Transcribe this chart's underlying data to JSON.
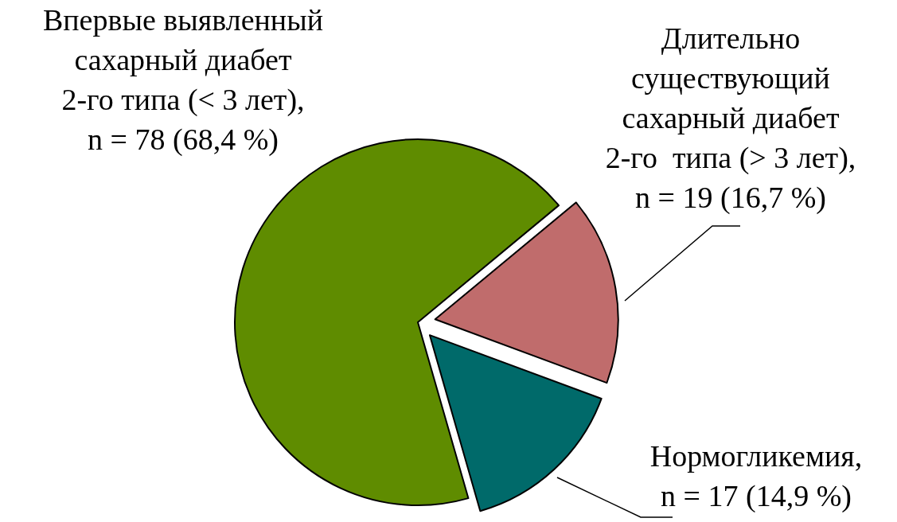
{
  "chart_data": {
    "type": "pie",
    "categories": [
      "Впервые выявленный\nсахарный диабет\n2-го типа (< 3 лет),\nn = 78 (68,4 %)",
      "Длительно\nсуществующий\nсахарный диабет\n2-го  типа (> 3 лет),\nn = 19 (16,7 %)",
      "Нормогликемия,\nn = 17 (14,9 %)"
    ],
    "values": [
      78,
      19,
      17
    ],
    "colors": [
      "#5f8c00",
      "#c06c6c",
      "#006a6a"
    ],
    "legend": false
  }
}
